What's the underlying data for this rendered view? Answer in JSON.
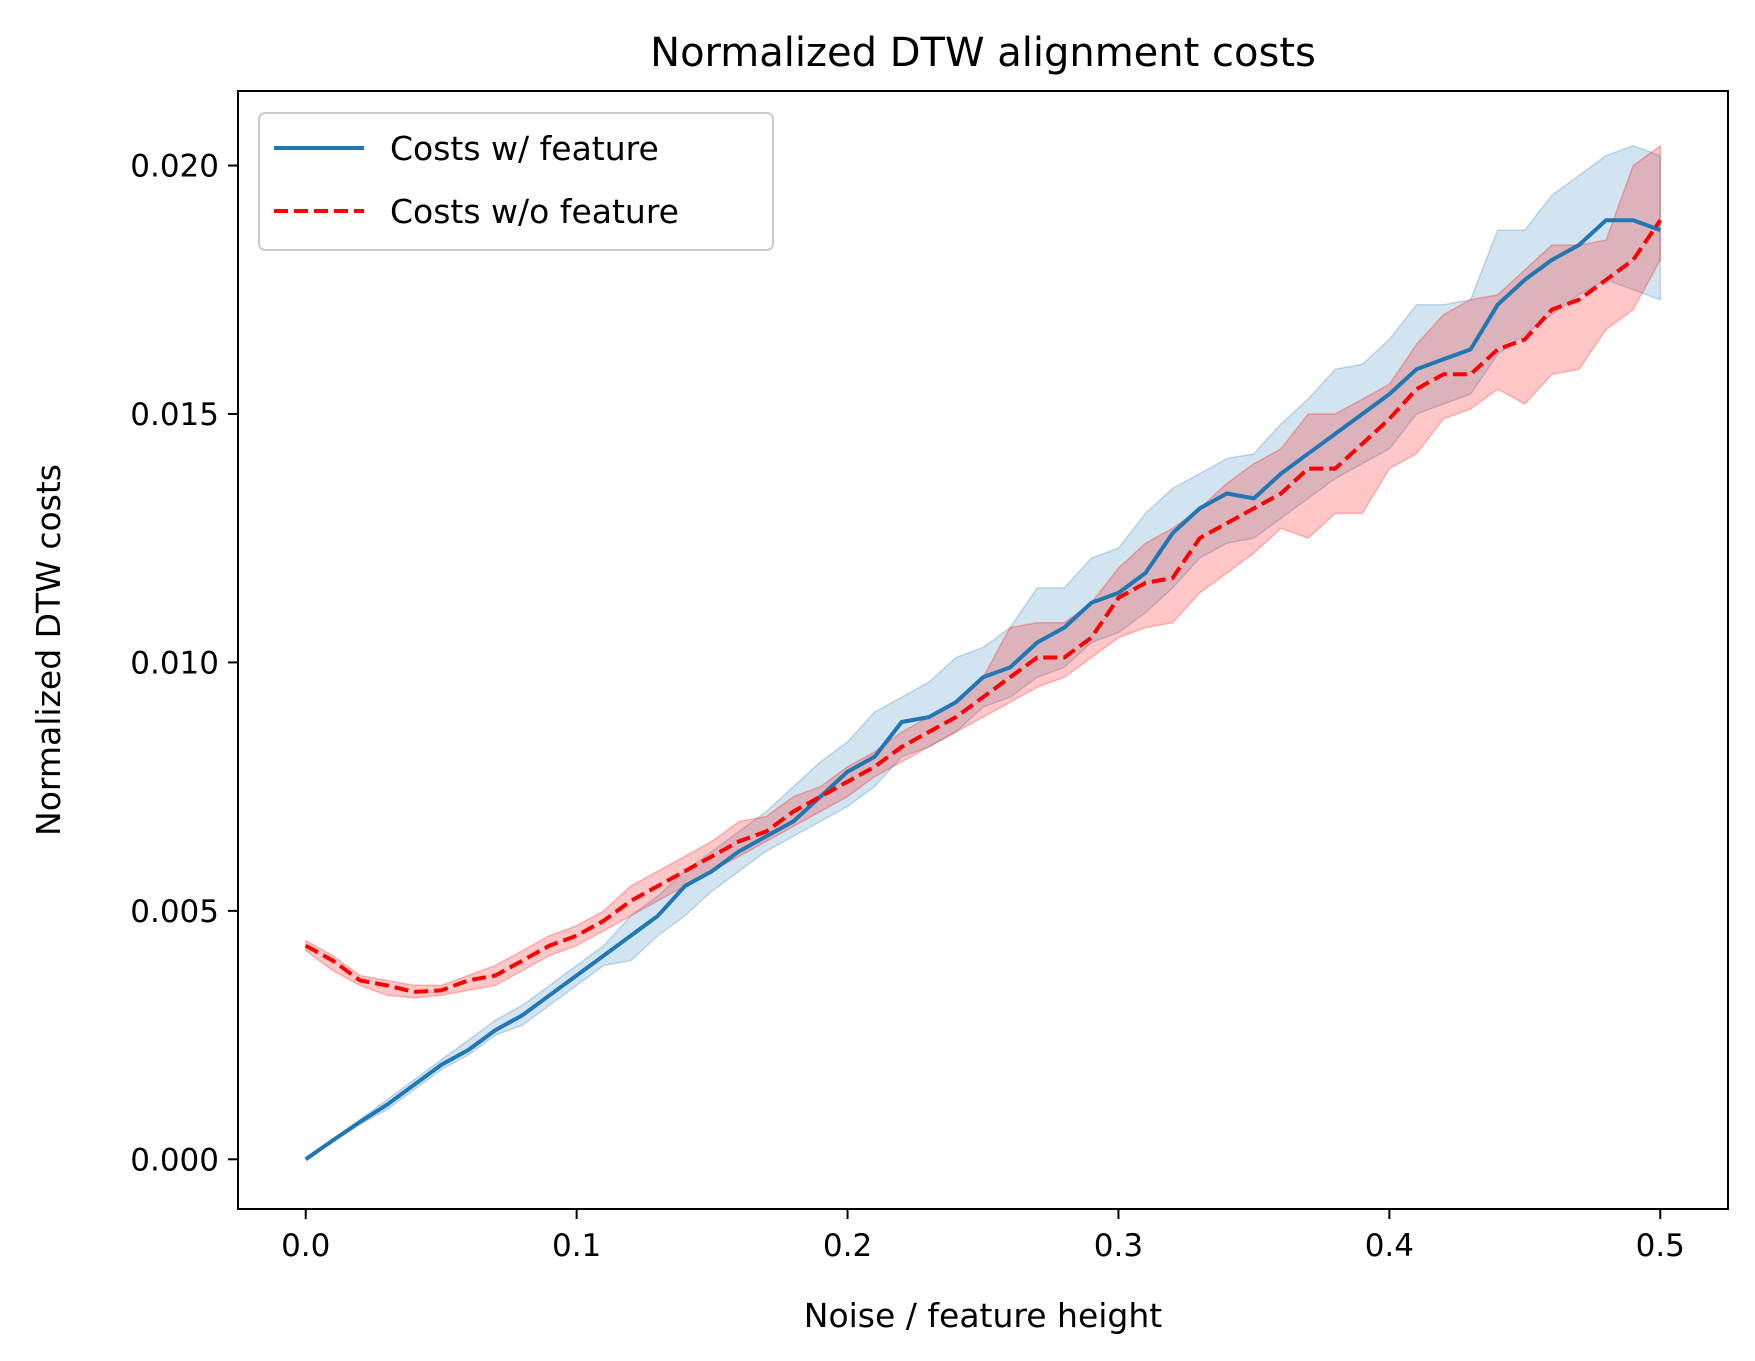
{
  "chart_data": {
    "type": "line",
    "title": "Normalized DTW alignment costs",
    "xlabel": "Noise / feature height",
    "ylabel": "Normalized DTW costs",
    "xlim": [
      -0.025,
      0.525
    ],
    "ylim": [
      -0.001,
      0.0215
    ],
    "xticks": [
      {
        "value": 0.0,
        "label": "0.0"
      },
      {
        "value": 0.1,
        "label": "0.1"
      },
      {
        "value": 0.2,
        "label": "0.2"
      },
      {
        "value": 0.3,
        "label": "0.3"
      },
      {
        "value": 0.4,
        "label": "0.4"
      },
      {
        "value": 0.5,
        "label": "0.5"
      }
    ],
    "yticks": [
      {
        "value": 0.0,
        "label": "0.000"
      },
      {
        "value": 0.005,
        "label": "0.005"
      },
      {
        "value": 0.01,
        "label": "0.010"
      },
      {
        "value": 0.015,
        "label": "0.015"
      },
      {
        "value": 0.02,
        "label": "0.020"
      }
    ],
    "grid": false,
    "legend_position": "top-left",
    "x": [
      0.0,
      0.01,
      0.02,
      0.03,
      0.04,
      0.05,
      0.06,
      0.07,
      0.08,
      0.09,
      0.1,
      0.11,
      0.12,
      0.13,
      0.14,
      0.15,
      0.16,
      0.17,
      0.18,
      0.19,
      0.2,
      0.21,
      0.22,
      0.23,
      0.24,
      0.25,
      0.26,
      0.27,
      0.28,
      0.29,
      0.3,
      0.31,
      0.32,
      0.33,
      0.34,
      0.35,
      0.36,
      0.37,
      0.38,
      0.39,
      0.4,
      0.41,
      0.42,
      0.43,
      0.44,
      0.45,
      0.46,
      0.47,
      0.48,
      0.49,
      0.5
    ],
    "series": [
      {
        "name": "Costs w/ feature",
        "color": "#1f77b4",
        "style": "solid",
        "values": [
          0.0,
          0.00038,
          0.00075,
          0.0011,
          0.0015,
          0.0019,
          0.0022,
          0.0026,
          0.0029,
          0.0033,
          0.0037,
          0.0041,
          0.0045,
          0.0049,
          0.0055,
          0.0058,
          0.0062,
          0.0065,
          0.0068,
          0.0073,
          0.0078,
          0.0081,
          0.0088,
          0.0089,
          0.0092,
          0.0097,
          0.0099,
          0.0104,
          0.0107,
          0.0112,
          0.0114,
          0.0118,
          0.0126,
          0.0131,
          0.0134,
          0.0133,
          0.0138,
          0.0142,
          0.0146,
          0.015,
          0.0154,
          0.0159,
          0.0161,
          0.0163,
          0.0172,
          0.0177,
          0.0181,
          0.0184,
          0.0189,
          0.0189,
          0.0187
        ],
        "band_low": [
          0.0,
          0.00035,
          0.0007,
          0.001,
          0.0014,
          0.0018,
          0.0021,
          0.0025,
          0.0027,
          0.0031,
          0.0035,
          0.0039,
          0.004,
          0.0045,
          0.0049,
          0.0054,
          0.0058,
          0.0062,
          0.0065,
          0.0068,
          0.0071,
          0.0075,
          0.0081,
          0.0083,
          0.0086,
          0.0091,
          0.0093,
          0.0097,
          0.0099,
          0.0104,
          0.0106,
          0.011,
          0.0115,
          0.0121,
          0.0124,
          0.0125,
          0.0129,
          0.0133,
          0.0137,
          0.014,
          0.0143,
          0.015,
          0.0152,
          0.0154,
          0.0162,
          0.0166,
          0.017,
          0.0174,
          0.0177,
          0.0175,
          0.0173
        ],
        "band_high": [
          0.0,
          0.0004,
          0.0008,
          0.0012,
          0.0016,
          0.002,
          0.0024,
          0.0028,
          0.0031,
          0.0035,
          0.0039,
          0.0043,
          0.0049,
          0.0053,
          0.0058,
          0.0062,
          0.0066,
          0.007,
          0.0075,
          0.008,
          0.0084,
          0.009,
          0.0093,
          0.0096,
          0.0101,
          0.0103,
          0.0107,
          0.0115,
          0.0115,
          0.0121,
          0.0123,
          0.013,
          0.0135,
          0.0138,
          0.0141,
          0.0142,
          0.0148,
          0.0153,
          0.0159,
          0.016,
          0.0165,
          0.0172,
          0.0172,
          0.0173,
          0.0187,
          0.0187,
          0.0194,
          0.0198,
          0.0202,
          0.0204,
          0.0202
        ]
      },
      {
        "name": "Costs w/o feature",
        "color": "#ff0000",
        "style": "dashed",
        "values": [
          0.0043,
          0.004,
          0.0036,
          0.0035,
          0.00337,
          0.0034,
          0.0036,
          0.0037,
          0.004,
          0.0043,
          0.0045,
          0.0048,
          0.0052,
          0.0055,
          0.0058,
          0.0061,
          0.0064,
          0.0066,
          0.007,
          0.0073,
          0.0076,
          0.0079,
          0.0083,
          0.0086,
          0.0089,
          0.0093,
          0.0097,
          0.0101,
          0.0101,
          0.0105,
          0.0113,
          0.0116,
          0.0117,
          0.0125,
          0.0128,
          0.0131,
          0.0134,
          0.0139,
          0.0139,
          0.0144,
          0.0149,
          0.0155,
          0.0158,
          0.0158,
          0.0163,
          0.0165,
          0.0171,
          0.0173,
          0.0177,
          0.0181,
          0.0189
        ],
        "band_low": [
          0.0042,
          0.0038,
          0.0035,
          0.0033,
          0.00325,
          0.0033,
          0.0034,
          0.0035,
          0.0038,
          0.0041,
          0.0043,
          0.0046,
          0.0049,
          0.0052,
          0.0055,
          0.0058,
          0.0061,
          0.0064,
          0.0067,
          0.007,
          0.0073,
          0.0077,
          0.008,
          0.0083,
          0.0086,
          0.0089,
          0.0092,
          0.0095,
          0.0097,
          0.0101,
          0.0105,
          0.0107,
          0.0108,
          0.0114,
          0.0118,
          0.0122,
          0.0127,
          0.0125,
          0.013,
          0.013,
          0.0139,
          0.0142,
          0.0149,
          0.0151,
          0.0155,
          0.0152,
          0.0158,
          0.0159,
          0.0167,
          0.0171,
          0.0181
        ],
        "band_high": [
          0.0044,
          0.0041,
          0.0037,
          0.0036,
          0.0035,
          0.0035,
          0.0037,
          0.0039,
          0.0042,
          0.0045,
          0.0047,
          0.005,
          0.0055,
          0.0058,
          0.0061,
          0.0064,
          0.0068,
          0.0069,
          0.0073,
          0.0075,
          0.0079,
          0.0082,
          0.0086,
          0.0089,
          0.0092,
          0.0097,
          0.0107,
          0.0108,
          0.0108,
          0.0112,
          0.0119,
          0.0124,
          0.0127,
          0.0131,
          0.0136,
          0.014,
          0.0143,
          0.015,
          0.015,
          0.0153,
          0.0156,
          0.0164,
          0.017,
          0.0173,
          0.0174,
          0.0179,
          0.0184,
          0.0184,
          0.0185,
          0.02,
          0.0204
        ]
      }
    ]
  }
}
